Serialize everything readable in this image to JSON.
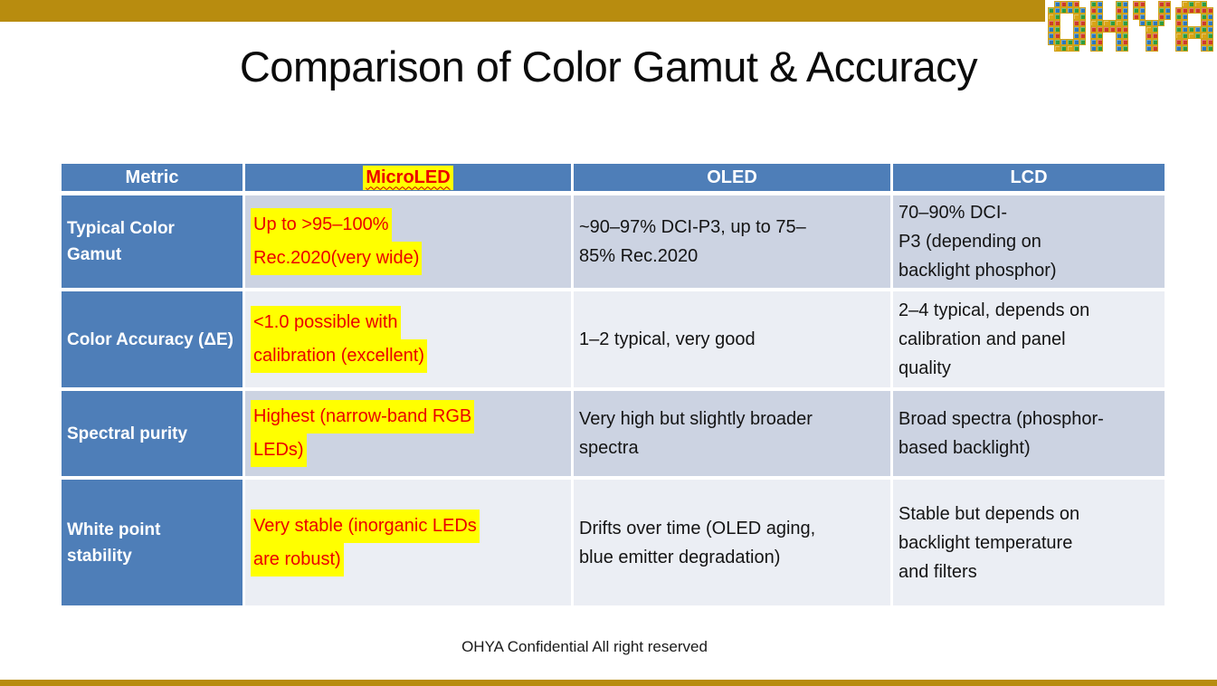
{
  "slide": {
    "title": "Comparison of Color Gamut & Accuracy",
    "footer": "OHYA Confidential All right reserved"
  },
  "logo": {
    "text": "OHYA",
    "palette": [
      "#CE3A28",
      "#2E9C3F",
      "#2C77BB",
      "#2E9C3F",
      "#CE3A28",
      "#2C77BB",
      "#D9A415",
      "#2E9C3F",
      "#2C77BB",
      "#CE3A28"
    ],
    "letters": {
      "O": [
        "011110",
        "111111",
        "110011",
        "110011",
        "110011",
        "110011",
        "111111",
        "011110"
      ],
      "H": [
        "110011",
        "110011",
        "110011",
        "111111",
        "111111",
        "110011",
        "110011",
        "110011"
      ],
      "Y": [
        "110011",
        "110011",
        "110011",
        "011110",
        "001100",
        "001100",
        "001100",
        "001100"
      ],
      "A": [
        "011110",
        "111111",
        "110011",
        "110011",
        "111111",
        "111111",
        "110011",
        "110011"
      ]
    }
  },
  "colors": {
    "gold": "#B88C0F",
    "header_blue": "#4E7EB8",
    "row_dark": "#CCD3E2",
    "row_light": "#EBEEF4",
    "highlight_yellow": "#FFFF00",
    "accent_red": "#EB0000"
  },
  "table": {
    "columns": [
      "Metric",
      "MicroLED",
      "OLED",
      "LCD"
    ],
    "rows": [
      {
        "metric": "Typical Color\nGamut",
        "microled": "Up to >95–100%\nRec.2020(very wide)",
        "oled": "~90–97% DCI-P3, up to 75–\n85% Rec.2020",
        "lcd": "70–90% DCI-\nP3 (depending on\nbacklight phosphor)"
      },
      {
        "metric": "Color Accuracy (ΔE)",
        "microled": "<1.0 possible with\ncalibration (excellent)",
        "oled": "1–2 typical, very good",
        "lcd": "2–4 typical, depends on\ncalibration and panel\nquality"
      },
      {
        "metric": "Spectral purity",
        "microled": "Highest (narrow-band RGB\nLEDs)",
        "oled": "Very high but slightly broader\nspectra",
        "lcd": "Broad spectra (phosphor-\nbased backlight)"
      },
      {
        "metric": "White point\nstability",
        "microled": "Very stable (inorganic LEDs\nare robust)",
        "oled": "Drifts over time (OLED aging,\nblue emitter degradation)",
        "lcd": "Stable but depends on\nbacklight temperature\nand filters"
      }
    ]
  }
}
